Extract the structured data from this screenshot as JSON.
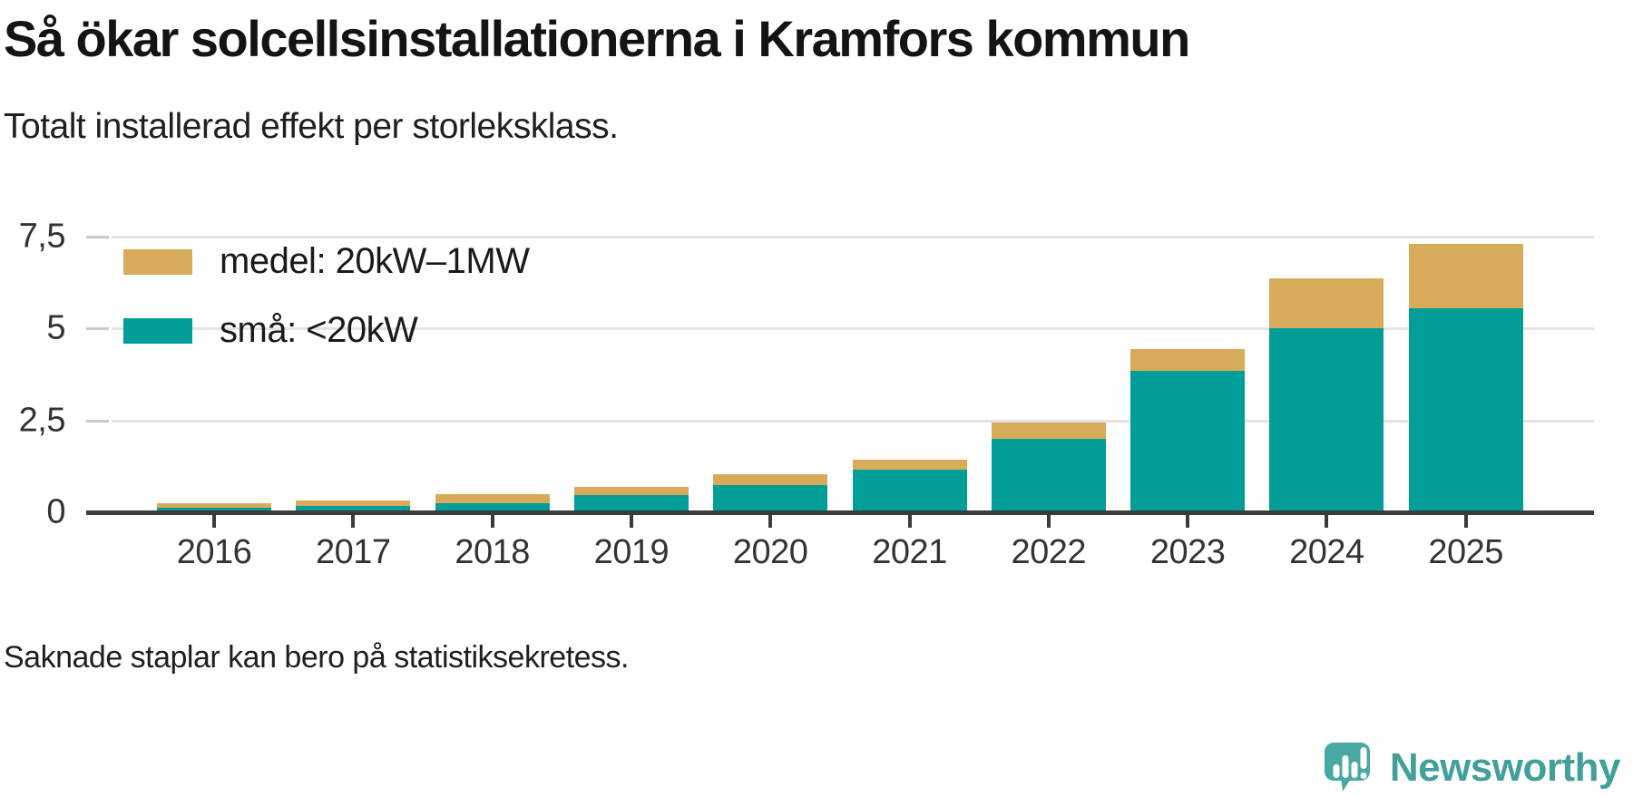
{
  "header": {
    "title": "Så ökar solcellsinstallationerna i Kramfors kommun",
    "subtitle": "Totalt installerad effekt per storleksklass."
  },
  "chart_data": {
    "type": "bar",
    "stacked": true,
    "title": "Så ökar solcellsinstallationerna i Kramfors kommun",
    "subtitle": "Totalt installerad effekt per storleksklass.",
    "categories": [
      "2016",
      "2017",
      "2018",
      "2019",
      "2020",
      "2021",
      "2022",
      "2023",
      "2024",
      "2025"
    ],
    "series": [
      {
        "name": "små: <20kW",
        "color": "#009e97",
        "values": [
          0.13,
          0.17,
          0.25,
          0.47,
          0.73,
          1.15,
          2.0,
          3.85,
          5.0,
          5.55
        ]
      },
      {
        "name": "medel: 20kW–1MW",
        "color": "#d8ab5a",
        "values": [
          0.12,
          0.14,
          0.24,
          0.22,
          0.29,
          0.28,
          0.44,
          0.6,
          1.35,
          1.75
        ]
      }
    ],
    "legend": [
      {
        "label": "medel: 20kW–1MW",
        "color": "#d8ab5a"
      },
      {
        "label": "små: <20kW",
        "color": "#009e97"
      }
    ],
    "legend_position": "top-left",
    "xlabel": "",
    "ylabel": "",
    "ylim": [
      0,
      7.5
    ],
    "y_ticks": [
      {
        "value": 0,
        "label": "0"
      },
      {
        "value": 2.5,
        "label": "2,5"
      },
      {
        "value": 5,
        "label": "5"
      },
      {
        "value": 7.5,
        "label": "7,5"
      }
    ],
    "grid": "horizontal"
  },
  "footer": {
    "note": "Saknade staplar kan bero på statistiksekretess."
  },
  "branding": {
    "name": "Newsworthy",
    "logo_icon": "newsworthy-speech-bubble-bar-chart-icon",
    "color": "#41a09a"
  },
  "colors": {
    "sma_teal": "#009e97",
    "medel_gold": "#d8ab5a",
    "axis": "#3b3b3b",
    "gridline": "#e3e3e3",
    "text": "#1a1a1a"
  }
}
